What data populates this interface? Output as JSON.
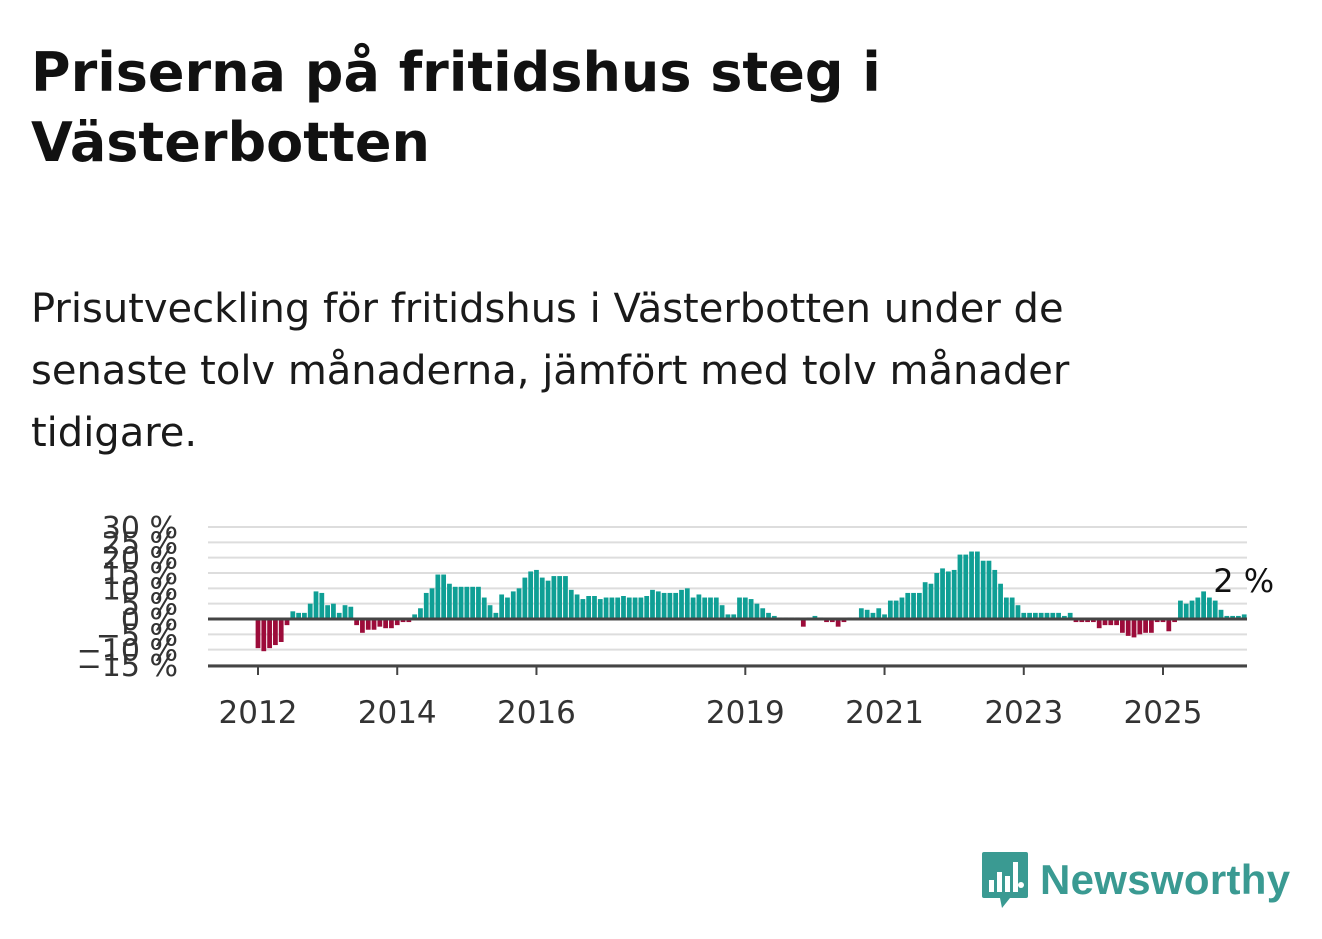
{
  "title": "Priserna på fritidshus steg i Västerbotten",
  "subtitle": "Prisutveckling för fritidshus i Västerbotten under de senaste tolv månaderna, jämfört med tolv månader tidigare.",
  "brand": {
    "name": "Newsworthy",
    "color": "#3a9a92"
  },
  "colors": {
    "positive": "#0f9f95",
    "negative": "#9c0c3a",
    "grid": "#dddddd",
    "axis": "#444444"
  },
  "chart_data": {
    "type": "bar",
    "ylim": [
      -15,
      30
    ],
    "yticks": [
      30,
      25,
      20,
      15,
      10,
      5,
      0,
      -5,
      -10,
      -15
    ],
    "ytick_labels": [
      "30 %",
      "25 %",
      "20 %",
      "15 %",
      "10 %",
      "5 %",
      "0 %",
      "−5 %",
      "−10 %",
      "−15 %"
    ],
    "xticks": [
      "2012",
      "2014",
      "2016",
      "2019",
      "2021",
      "2023",
      "2025"
    ],
    "grid": true,
    "last_value_label": "2 %",
    "x_start": "2012-01",
    "values": [
      -9.5,
      -10.5,
      -9.5,
      -8.5,
      -7.5,
      -2,
      2.5,
      2,
      2,
      5,
      9,
      8.5,
      4.5,
      5,
      2,
      4.5,
      4,
      -2,
      -4.5,
      -3.5,
      -3.5,
      -2.5,
      -3,
      -3,
      -2,
      -1,
      -1,
      1.5,
      3.5,
      8.5,
      10,
      14.5,
      14.5,
      11.5,
      10.5,
      10.5,
      10.5,
      10.5,
      10.5,
      7,
      4.5,
      2,
      8,
      7,
      9,
      10,
      13.5,
      15.5,
      16,
      13.5,
      12.5,
      14,
      14,
      14,
      9.5,
      8,
      6.5,
      7.5,
      7.5,
      6.5,
      7,
      7,
      7,
      7.5,
      7,
      7,
      7,
      7.5,
      9.5,
      9,
      8.5,
      8.5,
      8.5,
      9.5,
      10,
      7,
      8,
      7,
      7,
      7,
      4.5,
      1.5,
      1.5,
      7,
      7,
      6.5,
      5,
      3.5,
      2,
      1,
      0.5,
      0.5,
      0.5,
      0.5,
      -2.5,
      0.5,
      1,
      0.5,
      -1,
      -1,
      -2.5,
      -1,
      0.5,
      0.5,
      3.5,
      3,
      2,
      3.5,
      1.5,
      6,
      6,
      7,
      8.5,
      8.5,
      8.5,
      12,
      11.5,
      15,
      16.5,
      15.5,
      16,
      21,
      21,
      22,
      22,
      19,
      19,
      16,
      11.5,
      7,
      7,
      4.5,
      2,
      2,
      2,
      2,
      2,
      2,
      2,
      1,
      2,
      -1,
      -1,
      -1,
      -1,
      -3,
      -2,
      -2,
      -2,
      -4.5,
      -5.5,
      -6,
      -5,
      -4.5,
      -4.5,
      -1,
      -1,
      -4,
      -1,
      6,
      5,
      6,
      7,
      9,
      7,
      6,
      3,
      1,
      1,
      1,
      1.5
    ]
  }
}
